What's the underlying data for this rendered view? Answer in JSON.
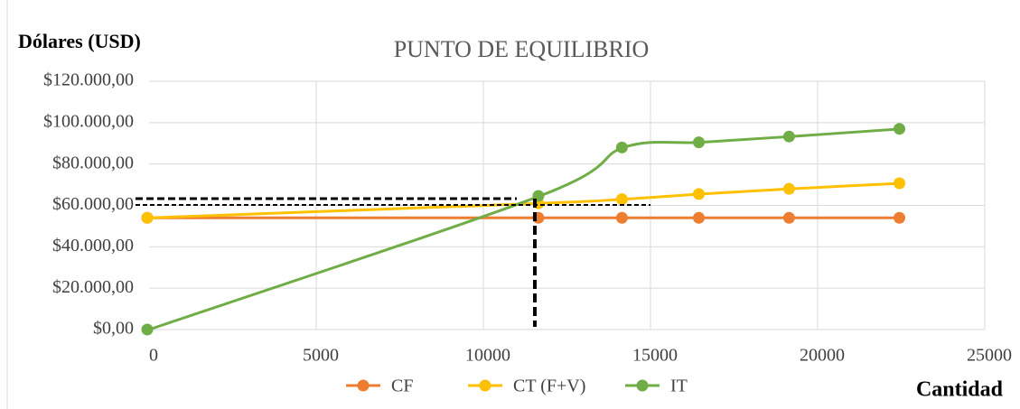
{
  "chart_data": {
    "type": "line",
    "title": "PUNTO DE EQUILIBRIO",
    "y_label": "Dólares (USD)",
    "x_label": "Cantidad",
    "series": [
      {
        "name": "CF",
        "color": "#ed7d31",
        "x": [
          0,
          11700,
          14200,
          16500,
          19200,
          22500
        ],
        "values": [
          54000,
          54000,
          54000,
          54000,
          54000,
          54000
        ]
      },
      {
        "name": "CT (F+V)",
        "color": "#ffc000",
        "x": [
          0,
          11700,
          14200,
          16500,
          19200,
          22500
        ],
        "values": [
          54000,
          61000,
          63000,
          65500,
          68000,
          70700
        ]
      },
      {
        "name": "IT",
        "color": "#70ad47",
        "x": [
          0,
          11700,
          14200,
          16500,
          19200,
          22500
        ],
        "values": [
          0,
          64600,
          88000,
          90500,
          93300,
          97000
        ]
      }
    ],
    "xlim": [
      0,
      25000
    ],
    "xticks": [
      0,
      5000,
      10000,
      15000,
      20000,
      25000
    ],
    "ylim": [
      0,
      120000
    ],
    "yticks": [
      {
        "value": 0,
        "label": "$0,00"
      },
      {
        "value": 20000,
        "label": "$20.000,00"
      },
      {
        "value": 40000,
        "label": "$40.000,00"
      },
      {
        "value": 60000,
        "label": "$60.000,00"
      },
      {
        "value": 80000,
        "label": "$80.000,00"
      },
      {
        "value": 100000,
        "label": "$100.000,00"
      },
      {
        "value": 120000,
        "label": "$120.000,00"
      }
    ],
    "grid": true,
    "legend": "bottom"
  }
}
